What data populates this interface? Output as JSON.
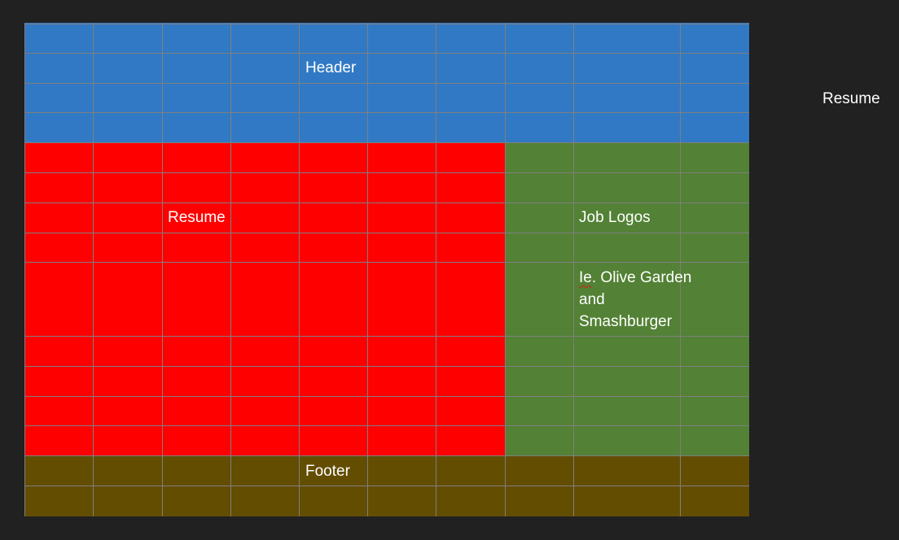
{
  "colors": {
    "background": "#212121",
    "header": "#3179c4",
    "resume": "#ff0000",
    "job_logos": "#538135",
    "footer": "#634d00",
    "gridline": "#7f7f7f",
    "text": "#ffffff"
  },
  "header": {
    "label": "Header"
  },
  "resume": {
    "label": "Resume"
  },
  "job_logos": {
    "label": "Job Logos",
    "note_prefix": "Ie",
    "note_rest": ". Olive Garden and Smashburger"
  },
  "footer": {
    "label": "Footer"
  },
  "side_label": "Resume"
}
